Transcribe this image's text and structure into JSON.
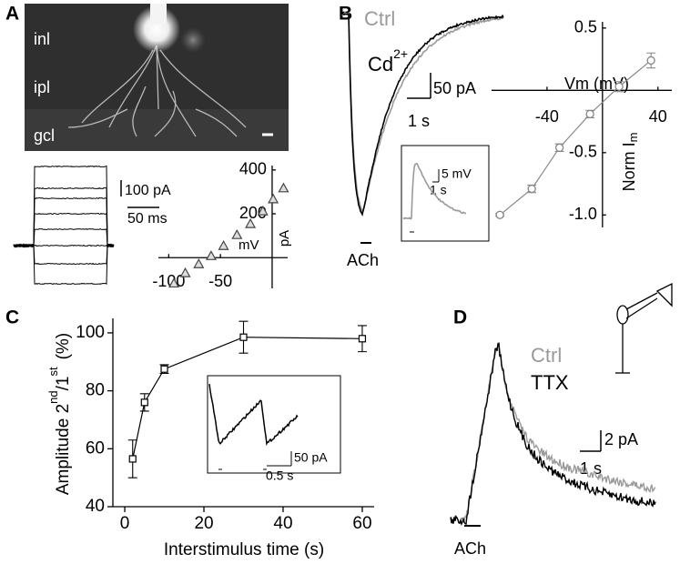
{
  "panels": [
    {
      "label": "A",
      "image_labels": [
        "inl",
        "ipl",
        "gcl"
      ],
      "scale_bars": [
        "100 pA",
        "50 ms"
      ]
    },
    {
      "label": "B",
      "legend": [
        {
          "name": "Ctrl",
          "color": "#9a9a9a"
        },
        {
          "name": [
            "Cd",
            "2+"
          ],
          "color": "#000000"
        }
      ],
      "scale_bars": [
        "50 pA",
        "1 s"
      ],
      "inset_scale_bars": [
        "5 mV",
        "1 s"
      ],
      "stimulus": "ACh"
    },
    {
      "label": "C",
      "inset_scale_bars": [
        "50 pA",
        "0.5 s"
      ]
    },
    {
      "label": "D",
      "legend": [
        {
          "name": "Ctrl",
          "color": "#9a9a9a"
        },
        {
          "name": "TTX",
          "color": "#000000"
        }
      ],
      "scale_bars": [
        "2 pA",
        "1 s"
      ],
      "stimulus": "ACh"
    }
  ],
  "chart_data": [
    {
      "type": "scatter",
      "x_label": "mV",
      "y_label": "pA",
      "marker": "triangle",
      "color": "#444444",
      "x": [
        -95,
        -84,
        -71,
        -59,
        -47,
        -34,
        -21,
        -9,
        1,
        11
      ],
      "values": [
        -117,
        -70,
        -29,
        8,
        54,
        104,
        154,
        212,
        267,
        317
      ],
      "xlim": [
        -110,
        15
      ],
      "ylim": [
        -140,
        420
      ],
      "xticks": [
        -100,
        -50
      ],
      "yticks": [
        200,
        400
      ]
    },
    {
      "type": "line",
      "x_label": "Vm (mV)",
      "y_label": [
        "Norm I",
        "m"
      ],
      "marker": "circle",
      "color": "#888888",
      "x": [
        -74,
        -51,
        -31,
        -9,
        12,
        35
      ],
      "values": [
        -1.0,
        -0.79,
        -0.46,
        -0.19,
        0.03,
        0.24
      ],
      "errors": [
        0.01,
        0.03,
        0.03,
        0.03,
        0.04,
        0.06
      ],
      "xlim": [
        -80,
        50
      ],
      "ylim": [
        -1.1,
        0.55
      ],
      "xticks": [
        -40,
        40
      ],
      "yticks": [
        0.5,
        -0.5,
        {
          "value": -1,
          "label": "-1.0"
        }
      ]
    },
    {
      "type": "line",
      "x_label": "Interstimulus time (s)",
      "y_label": [
        "Amplitude 2",
        "nd",
        "/1",
        "st",
        "(%)"
      ],
      "marker": "square",
      "color": "#000000",
      "x": [
        2,
        5,
        10,
        30,
        60
      ],
      "values": [
        56.5,
        76,
        87.5,
        98.5,
        98
      ],
      "errors": [
        6.5,
        3,
        1.5,
        5.5,
        4.5
      ],
      "xlim": [
        -3,
        63
      ],
      "ylim": [
        40,
        105
      ],
      "xticks": [
        0,
        20,
        40,
        60
      ],
      "yticks": [
        40,
        60,
        80,
        100
      ]
    }
  ]
}
